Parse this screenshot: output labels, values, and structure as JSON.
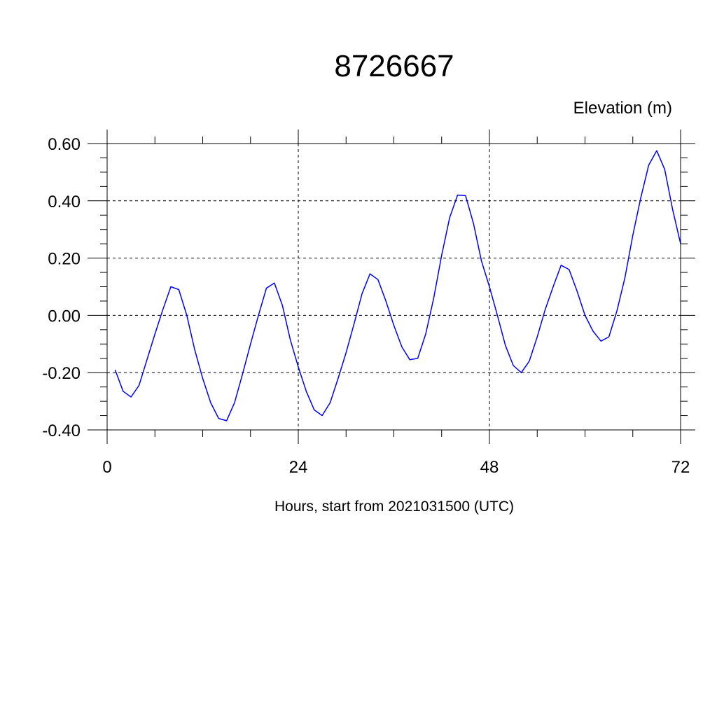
{
  "chart_data": {
    "type": "line",
    "title": "8726667",
    "ylabel": "Elevation (m)",
    "xlabel": "Hours, start from 2021031500 (UTC)",
    "xlim": [
      0,
      72
    ],
    "ylim": [
      -0.4,
      0.6
    ],
    "x_ticks": [
      0,
      24,
      48,
      72
    ],
    "x_tick_labels": [
      "0",
      "24",
      "48",
      "72"
    ],
    "y_ticks": [
      -0.4,
      -0.2,
      0.0,
      0.2,
      0.4,
      0.6
    ],
    "y_tick_labels": [
      "-0.40",
      "-0.20",
      "0.00",
      "0.20",
      "0.40",
      "0.60"
    ],
    "grid": true,
    "series": [
      {
        "color": "#0000ff",
        "x": [
          1,
          2,
          3,
          4,
          5,
          6,
          7,
          8,
          9,
          10,
          11,
          12,
          13,
          14,
          15,
          16,
          17,
          18,
          19,
          20,
          21,
          22,
          23,
          24,
          25,
          26,
          27,
          28,
          29,
          30,
          31,
          32,
          33,
          34,
          35,
          36,
          37,
          38,
          39,
          40,
          41,
          42,
          43,
          44,
          45,
          46,
          47,
          48,
          49,
          50,
          51,
          52,
          53,
          54,
          55,
          56,
          57,
          58,
          59,
          60,
          61,
          62,
          63,
          64,
          65,
          66,
          67,
          68,
          69,
          70,
          71,
          72
        ],
        "values": [
          -0.19,
          -0.265,
          -0.285,
          -0.245,
          -0.155,
          -0.065,
          0.02,
          0.1,
          0.09,
          0.0,
          -0.12,
          -0.22,
          -0.305,
          -0.36,
          -0.368,
          -0.305,
          -0.205,
          -0.1,
          0.0,
          0.095,
          0.113,
          0.035,
          -0.085,
          -0.18,
          -0.265,
          -0.33,
          -0.35,
          -0.305,
          -0.22,
          -0.13,
          -0.03,
          0.075,
          0.145,
          0.125,
          0.05,
          -0.035,
          -0.11,
          -0.155,
          -0.15,
          -0.065,
          0.06,
          0.21,
          0.34,
          0.42,
          0.418,
          0.32,
          0.19,
          0.1,
          0.0,
          -0.105,
          -0.175,
          -0.2,
          -0.16,
          -0.075,
          0.02,
          0.1,
          0.175,
          0.16,
          0.085,
          0.0,
          -0.055,
          -0.09,
          -0.075,
          0.015,
          0.13,
          0.28,
          0.41,
          0.525,
          0.575,
          0.51,
          0.37,
          0.25
        ]
      }
    ]
  }
}
